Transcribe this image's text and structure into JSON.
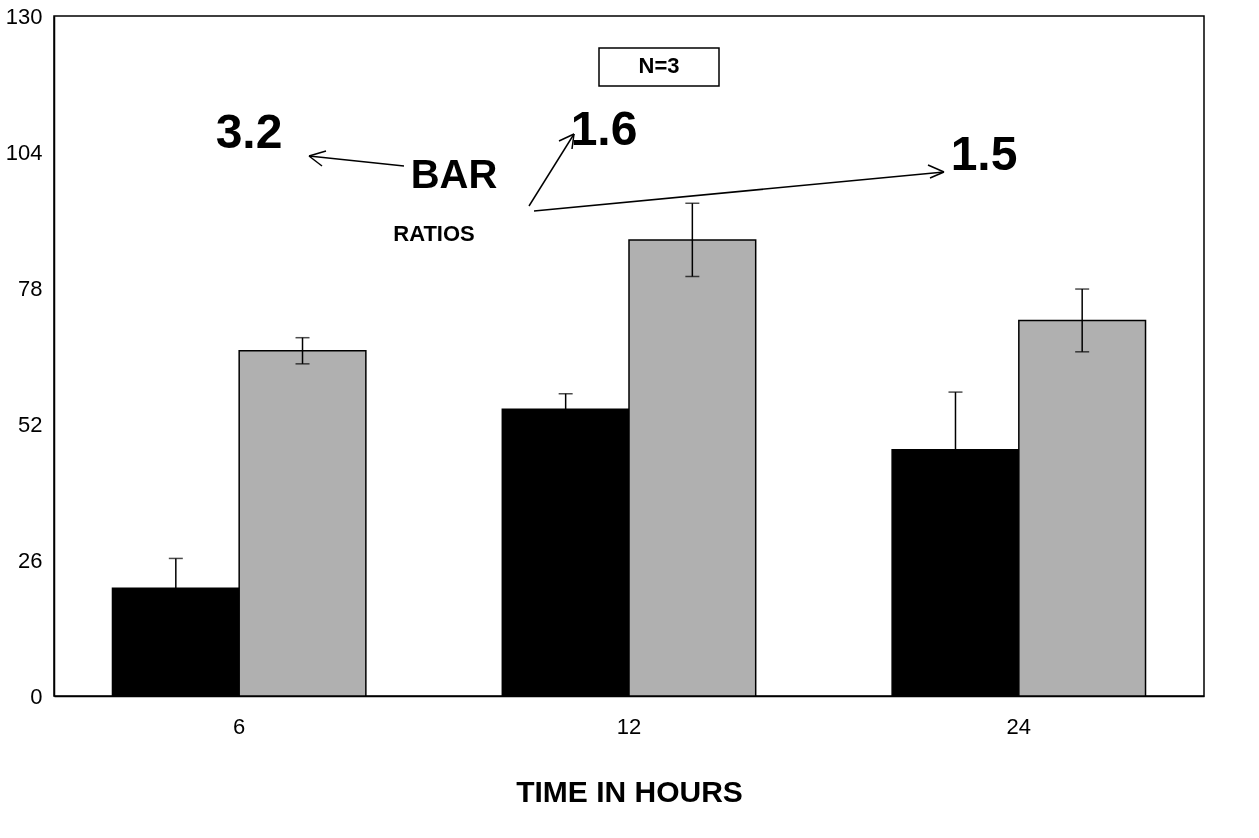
{
  "chart_data": {
    "type": "bar",
    "xlabel": "TIME IN HOURS",
    "categories": [
      "6",
      "12",
      "24"
    ],
    "series": [
      {
        "color": "#000000",
        "values": [
          20.6,
          54.8,
          47.1
        ],
        "errors": [
          5.7,
          3,
          11
        ]
      },
      {
        "color": "#b0b0b0",
        "values": [
          66,
          87.2,
          71.8
        ],
        "errors": [
          2.5,
          7,
          6
        ]
      }
    ],
    "ylim": [
      0,
      130
    ],
    "yticks": [
      0,
      26,
      52,
      78,
      104,
      130
    ],
    "grid": false,
    "legend": false,
    "annotations": [
      "N=3",
      "3.2",
      "1.6",
      "1.5",
      "BAR",
      "RATIOS"
    ]
  }
}
